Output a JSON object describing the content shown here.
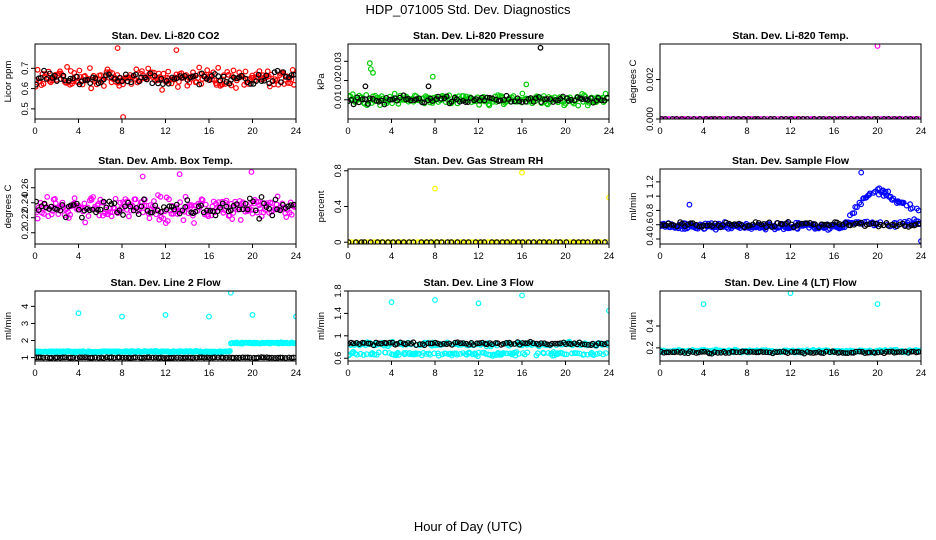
{
  "figure": {
    "title": "HDP_071005  Std. Dev. Diagnostics",
    "xlabel": "Hour of Day (UTC)"
  },
  "chart_data": [
    {
      "type": "scatter",
      "title": "Stan. Dev. Li-820 CO2",
      "ylabel": "Licor ppm",
      "xlim": [
        0,
        24
      ],
      "ylim": [
        0.45,
        0.82
      ],
      "xticks": [
        0,
        4,
        8,
        12,
        16,
        20,
        24
      ],
      "yticks": [
        0.5,
        0.6,
        0.7
      ],
      "series": [
        {
          "color": "#ff0000",
          "gen": {
            "mode": "band",
            "base": 0.65,
            "spread": 0.07,
            "n": 220,
            "seed": 11
          },
          "outliers": [
            [
              7.6,
              0.8
            ],
            [
              13.0,
              0.79
            ],
            [
              8.1,
              0.46
            ]
          ]
        },
        {
          "color": "#000000",
          "gen": {
            "mode": "band",
            "base": 0.65,
            "spread": 0.05,
            "n": 96,
            "seed": 12
          }
        }
      ]
    },
    {
      "type": "scatter",
      "title": "Stan. Dev. Li-820 Pressure",
      "ylabel": "kPa",
      "xlim": [
        0,
        24
      ],
      "ylim": [
        0.0,
        0.039
      ],
      "xticks": [
        0,
        4,
        8,
        12,
        16,
        20,
        24
      ],
      "yticks": [
        0.01,
        0.02,
        0.03
      ],
      "series": [
        {
          "color": "#00cc00",
          "gen": {
            "mode": "band",
            "base": 0.01,
            "spread": 0.004,
            "n": 220,
            "seed": 21
          },
          "outliers": [
            [
              2.0,
              0.029
            ],
            [
              2.1,
              0.026
            ],
            [
              2.3,
              0.024
            ],
            [
              7.8,
              0.022
            ],
            [
              16.4,
              0.018
            ]
          ]
        },
        {
          "color": "#000000",
          "gen": {
            "mode": "band",
            "base": 0.01,
            "spread": 0.003,
            "n": 96,
            "seed": 22
          },
          "outliers": [
            [
              17.7,
              0.037
            ],
            [
              1.6,
              0.017
            ],
            [
              7.4,
              0.017
            ]
          ]
        }
      ]
    },
    {
      "type": "scatter",
      "title": "Stan. Dev. Li-820 Temp.",
      "ylabel": "degrees C",
      "xlim": [
        0,
        24
      ],
      "ylim": [
        0.0,
        0.0038
      ],
      "xticks": [
        0,
        4,
        8,
        12,
        16,
        20,
        24
      ],
      "yticks": [
        0.0,
        0.002
      ],
      "ytick_labels": [
        "0.000",
        "0.002"
      ],
      "series": [
        {
          "color": "#ff00ff",
          "gen": {
            "mode": "const",
            "base": 0.0,
            "n": 96,
            "seed": 31
          },
          "outliers": [
            [
              20.0,
              0.0037
            ]
          ]
        },
        {
          "color": "#000000",
          "gen": {
            "mode": "const",
            "base": 0.0,
            "n": 48,
            "seed": 32
          }
        }
      ]
    },
    {
      "type": "scatter",
      "title": "Stan. Dev. Amb. Box Temp.",
      "ylabel": "degrees C",
      "xlim": [
        0,
        24
      ],
      "ylim": [
        0.185,
        0.285
      ],
      "xticks": [
        0,
        4,
        8,
        12,
        16,
        20,
        24
      ],
      "yticks": [
        0.2,
        0.22,
        0.24,
        0.26
      ],
      "series": [
        {
          "color": "#ff00ff",
          "gen": {
            "mode": "band",
            "base": 0.232,
            "spread": 0.022,
            "n": 240,
            "seed": 41
          },
          "outliers": [
            [
              19.9,
              0.281
            ],
            [
              13.3,
              0.278
            ],
            [
              9.9,
              0.275
            ]
          ]
        },
        {
          "color": "#000000",
          "gen": {
            "mode": "band",
            "base": 0.232,
            "spread": 0.018,
            "n": 96,
            "seed": 42
          }
        }
      ]
    },
    {
      "type": "scatter",
      "title": "Stan. Dev. Gas Stream RH",
      "ylabel": "percent",
      "xlim": [
        0,
        24
      ],
      "ylim": [
        -0.02,
        0.82
      ],
      "xticks": [
        0,
        4,
        8,
        12,
        16,
        20,
        24
      ],
      "yticks": [
        0.0,
        0.4,
        0.8
      ],
      "series": [
        {
          "color": "#ffff00",
          "gen": {
            "mode": "const",
            "base": 0.0,
            "n": 96,
            "seed": 51
          },
          "outliers": [
            [
              8.0,
              0.6
            ],
            [
              16.0,
              0.78
            ],
            [
              24.0,
              0.5
            ]
          ]
        },
        {
          "color": "#000000",
          "gen": {
            "mode": "const",
            "base": 0.0,
            "n": 48,
            "seed": 52
          }
        }
      ]
    },
    {
      "type": "scatter",
      "title": "Stan. Dev. Sample Flow",
      "ylabel": "ml/min",
      "xlim": [
        0,
        24
      ],
      "ylim": [
        0.33,
        1.38
      ],
      "xticks": [
        0,
        4,
        8,
        12,
        16,
        20,
        24
      ],
      "yticks": [
        0.4,
        0.6,
        0.8,
        1.0,
        1.2
      ],
      "series": [
        {
          "color": "#0000ff",
          "gen": {
            "mode": "sample",
            "base": 0.58,
            "spread": 0.07,
            "n": 300,
            "seed": 61
          },
          "outliers": [
            [
              18.5,
              1.33
            ],
            [
              24.0,
              0.37
            ],
            [
              2.7,
              0.88
            ]
          ]
        },
        {
          "color": "#000000",
          "gen": {
            "mode": "band",
            "base": 0.6,
            "spread": 0.05,
            "n": 96,
            "seed": 62
          }
        }
      ]
    },
    {
      "type": "scatter",
      "title": "Stan. Dev. Line 2 Flow",
      "ylabel": "ml/min",
      "xlim": [
        0,
        24
      ],
      "ylim": [
        0.8,
        4.9
      ],
      "xticks": [
        0,
        4,
        8,
        12,
        16,
        20,
        24
      ],
      "yticks": [
        1,
        2,
        3,
        4
      ],
      "series": [
        {
          "color": "#00ffff",
          "gen": {
            "mode": "line2",
            "base": 1.35,
            "spread": 0.06,
            "n": 240,
            "seed": 71
          },
          "outliers": [
            [
              4.0,
              3.6
            ],
            [
              8.0,
              3.4
            ],
            [
              12.0,
              3.5
            ],
            [
              16.0,
              3.4
            ],
            [
              18.0,
              4.8
            ],
            [
              20.0,
              3.5
            ],
            [
              24.0,
              3.4
            ]
          ]
        },
        {
          "color": "#000000",
          "gen": {
            "mode": "band",
            "base": 1.0,
            "spread": 0.03,
            "n": 96,
            "seed": 72
          }
        }
      ]
    },
    {
      "type": "scatter",
      "title": "Stan. Dev. Line 3 Flow",
      "ylabel": "ml/min",
      "xlim": [
        0,
        24
      ],
      "ylim": [
        0.55,
        1.8
      ],
      "xticks": [
        0,
        4,
        8,
        12,
        16,
        20,
        24
      ],
      "yticks": [
        0.6,
        1.0,
        1.4,
        1.8
      ],
      "series": [
        {
          "color": "#00ffff",
          "gen": {
            "mode": "twoband",
            "base": 0.85,
            "base2": 0.68,
            "spread": 0.05,
            "n": 300,
            "seed": 81
          },
          "outliers": [
            [
              4.0,
              1.6
            ],
            [
              8.0,
              1.64
            ],
            [
              16.0,
              1.72
            ],
            [
              24.0,
              1.45
            ],
            [
              12.0,
              1.58
            ]
          ]
        },
        {
          "color": "#000000",
          "gen": {
            "mode": "band",
            "base": 0.86,
            "spread": 0.04,
            "n": 96,
            "seed": 82
          }
        }
      ]
    },
    {
      "type": "scatter",
      "title": "Stan. Dev. Line 4 (LT) Flow",
      "ylabel": "ml/min",
      "xlim": [
        0,
        24
      ],
      "ylim": [
        0.08,
        0.72
      ],
      "xticks": [
        0,
        4,
        8,
        12,
        16,
        20,
        24
      ],
      "yticks": [
        0.2,
        0.4
      ],
      "series": [
        {
          "color": "#00ffff",
          "gen": {
            "mode": "band",
            "base": 0.17,
            "spread": 0.018,
            "n": 240,
            "seed": 91
          },
          "outliers": [
            [
              4.0,
              0.6
            ],
            [
              12.0,
              0.7
            ],
            [
              20.0,
              0.6
            ]
          ]
        },
        {
          "color": "#000000",
          "gen": {
            "mode": "band",
            "base": 0.16,
            "spread": 0.014,
            "n": 96,
            "seed": 92
          }
        }
      ]
    }
  ]
}
